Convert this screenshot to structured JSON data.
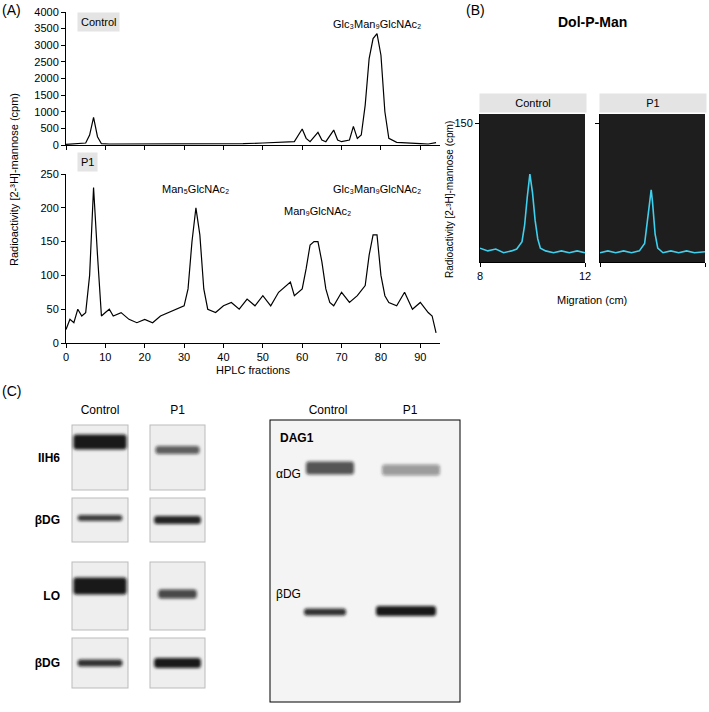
{
  "panel_labels": [
    "(A)",
    "(B)",
    "(C)"
  ],
  "panel_a": {
    "y_label": "Radioactivity [2-³H]-mannose (cpm)",
    "x_label": "HPLC fractions"
  },
  "panel_b": {
    "title": "Dol-P-Man",
    "y_label": "Radioactivity [2-³H]-mannose (cpm)",
    "x_label": "Migration (cm)"
  },
  "chart_data": [
    {
      "type": "line",
      "title": "Control",
      "color": "#000000",
      "x": [
        0,
        2,
        4,
        5,
        6,
        7,
        8,
        9,
        11,
        15,
        20,
        25,
        30,
        35,
        40,
        45,
        50,
        55,
        58,
        60,
        61,
        62,
        64,
        65,
        66,
        68,
        69,
        70,
        72,
        73,
        74,
        75,
        76,
        77,
        78,
        79,
        80,
        81,
        82,
        84,
        86,
        88,
        90,
        92,
        94
      ],
      "values": [
        20,
        30,
        40,
        60,
        300,
        830,
        250,
        40,
        30,
        30,
        25,
        30,
        30,
        40,
        30,
        40,
        60,
        80,
        100,
        480,
        200,
        100,
        380,
        150,
        100,
        450,
        150,
        100,
        150,
        560,
        200,
        300,
        1200,
        2600,
        3200,
        3350,
        2700,
        1000,
        200,
        80,
        60,
        50,
        40,
        30,
        70
      ],
      "xlim": [
        0,
        95
      ],
      "xticks": [
        0,
        10,
        20,
        30,
        40,
        50,
        60,
        70,
        80,
        90
      ],
      "ylim": [
        0,
        4000
      ],
      "yticks": [
        0,
        500,
        1000,
        1500,
        2000,
        2500,
        3000,
        3500,
        4000
      ],
      "tick_labels": "y",
      "grid": false,
      "annotations": [
        {
          "text": "Glc₃Man₉GlcNAc₂",
          "x": 79,
          "y": 3650
        }
      ]
    },
    {
      "type": "line",
      "title": "P1",
      "color": "#000000",
      "x": [
        0,
        1,
        2,
        3,
        4,
        5,
        6,
        7,
        8,
        9,
        10,
        11,
        12,
        14,
        16,
        18,
        20,
        22,
        24,
        26,
        28,
        30,
        31,
        32,
        33,
        34,
        35,
        36,
        38,
        40,
        42,
        44,
        46,
        48,
        50,
        52,
        54,
        56,
        57,
        58,
        60,
        61,
        62,
        63,
        64,
        65,
        66,
        67,
        68,
        70,
        72,
        74,
        76,
        77,
        78,
        79,
        80,
        81,
        82,
        84,
        86,
        88,
        90,
        92,
        93,
        94
      ],
      "values": [
        20,
        35,
        30,
        50,
        40,
        45,
        100,
        230,
        130,
        40,
        45,
        50,
        40,
        45,
        35,
        30,
        35,
        30,
        40,
        45,
        50,
        55,
        80,
        150,
        200,
        160,
        80,
        50,
        45,
        55,
        60,
        50,
        65,
        55,
        70,
        55,
        75,
        85,
        90,
        70,
        80,
        110,
        145,
        150,
        150,
        120,
        80,
        60,
        55,
        75,
        60,
        70,
        85,
        130,
        160,
        160,
        100,
        70,
        60,
        55,
        75,
        50,
        60,
        45,
        40,
        15
      ],
      "xlim": [
        0,
        95
      ],
      "xticks": [
        0,
        10,
        20,
        30,
        40,
        50,
        60,
        70,
        80,
        90
      ],
      "ylim": [
        0,
        250
      ],
      "yticks": [
        0,
        50,
        100,
        150,
        200,
        250
      ],
      "grid": false,
      "annotations": [
        {
          "text": "Man₅GlcNAc₂",
          "x": 33,
          "y": 228
        },
        {
          "text": "Man₉GlcNAc₂",
          "x": 64,
          "y": 195
        },
        {
          "text": "Glc₃Man₉GlcNAc₂",
          "x": 79,
          "y": 228
        }
      ]
    },
    {
      "type": "line",
      "title": "Control",
      "color": "#3fd0ee",
      "x": [
        8,
        8.3,
        8.6,
        8.9,
        9.2,
        9.4,
        9.6,
        9.7,
        9.8,
        9.9,
        10.0,
        10.1,
        10.2,
        10.3,
        10.5,
        10.8,
        11.1,
        11.4,
        11.7,
        12
      ],
      "values": [
        15,
        12,
        14,
        10,
        12,
        14,
        22,
        40,
        70,
        95,
        75,
        45,
        25,
        15,
        12,
        10,
        12,
        10,
        12,
        10
      ],
      "xlim": [
        8,
        12
      ],
      "xticks": [
        8,
        12
      ],
      "ylim": [
        0,
        160
      ],
      "yticks": [
        150
      ],
      "grid": false
    },
    {
      "type": "line",
      "title": "P1",
      "color": "#3fd0ee",
      "x": [
        8,
        8.3,
        8.6,
        8.9,
        9.2,
        9.5,
        9.7,
        9.8,
        9.9,
        9.95,
        10.0,
        10.1,
        10.2,
        10.4,
        10.7,
        11.0,
        11.3,
        11.6,
        12
      ],
      "values": [
        10,
        12,
        10,
        12,
        10,
        12,
        20,
        45,
        70,
        78,
        65,
        30,
        15,
        10,
        12,
        10,
        12,
        10,
        11
      ],
      "xlim": [
        8,
        12
      ],
      "xticks": [
        8,
        12
      ],
      "ylim": [
        0,
        160
      ],
      "yticks": [
        150
      ],
      "tick_labels": false,
      "grid": false
    }
  ],
  "blots": {
    "columns": [
      "Control",
      "P1"
    ],
    "rows": [
      "IIH6",
      "βDG",
      "LO",
      "βDG"
    ],
    "dag1": {
      "label": "DAG1",
      "bands": [
        "αDG",
        "βDG"
      ]
    }
  }
}
